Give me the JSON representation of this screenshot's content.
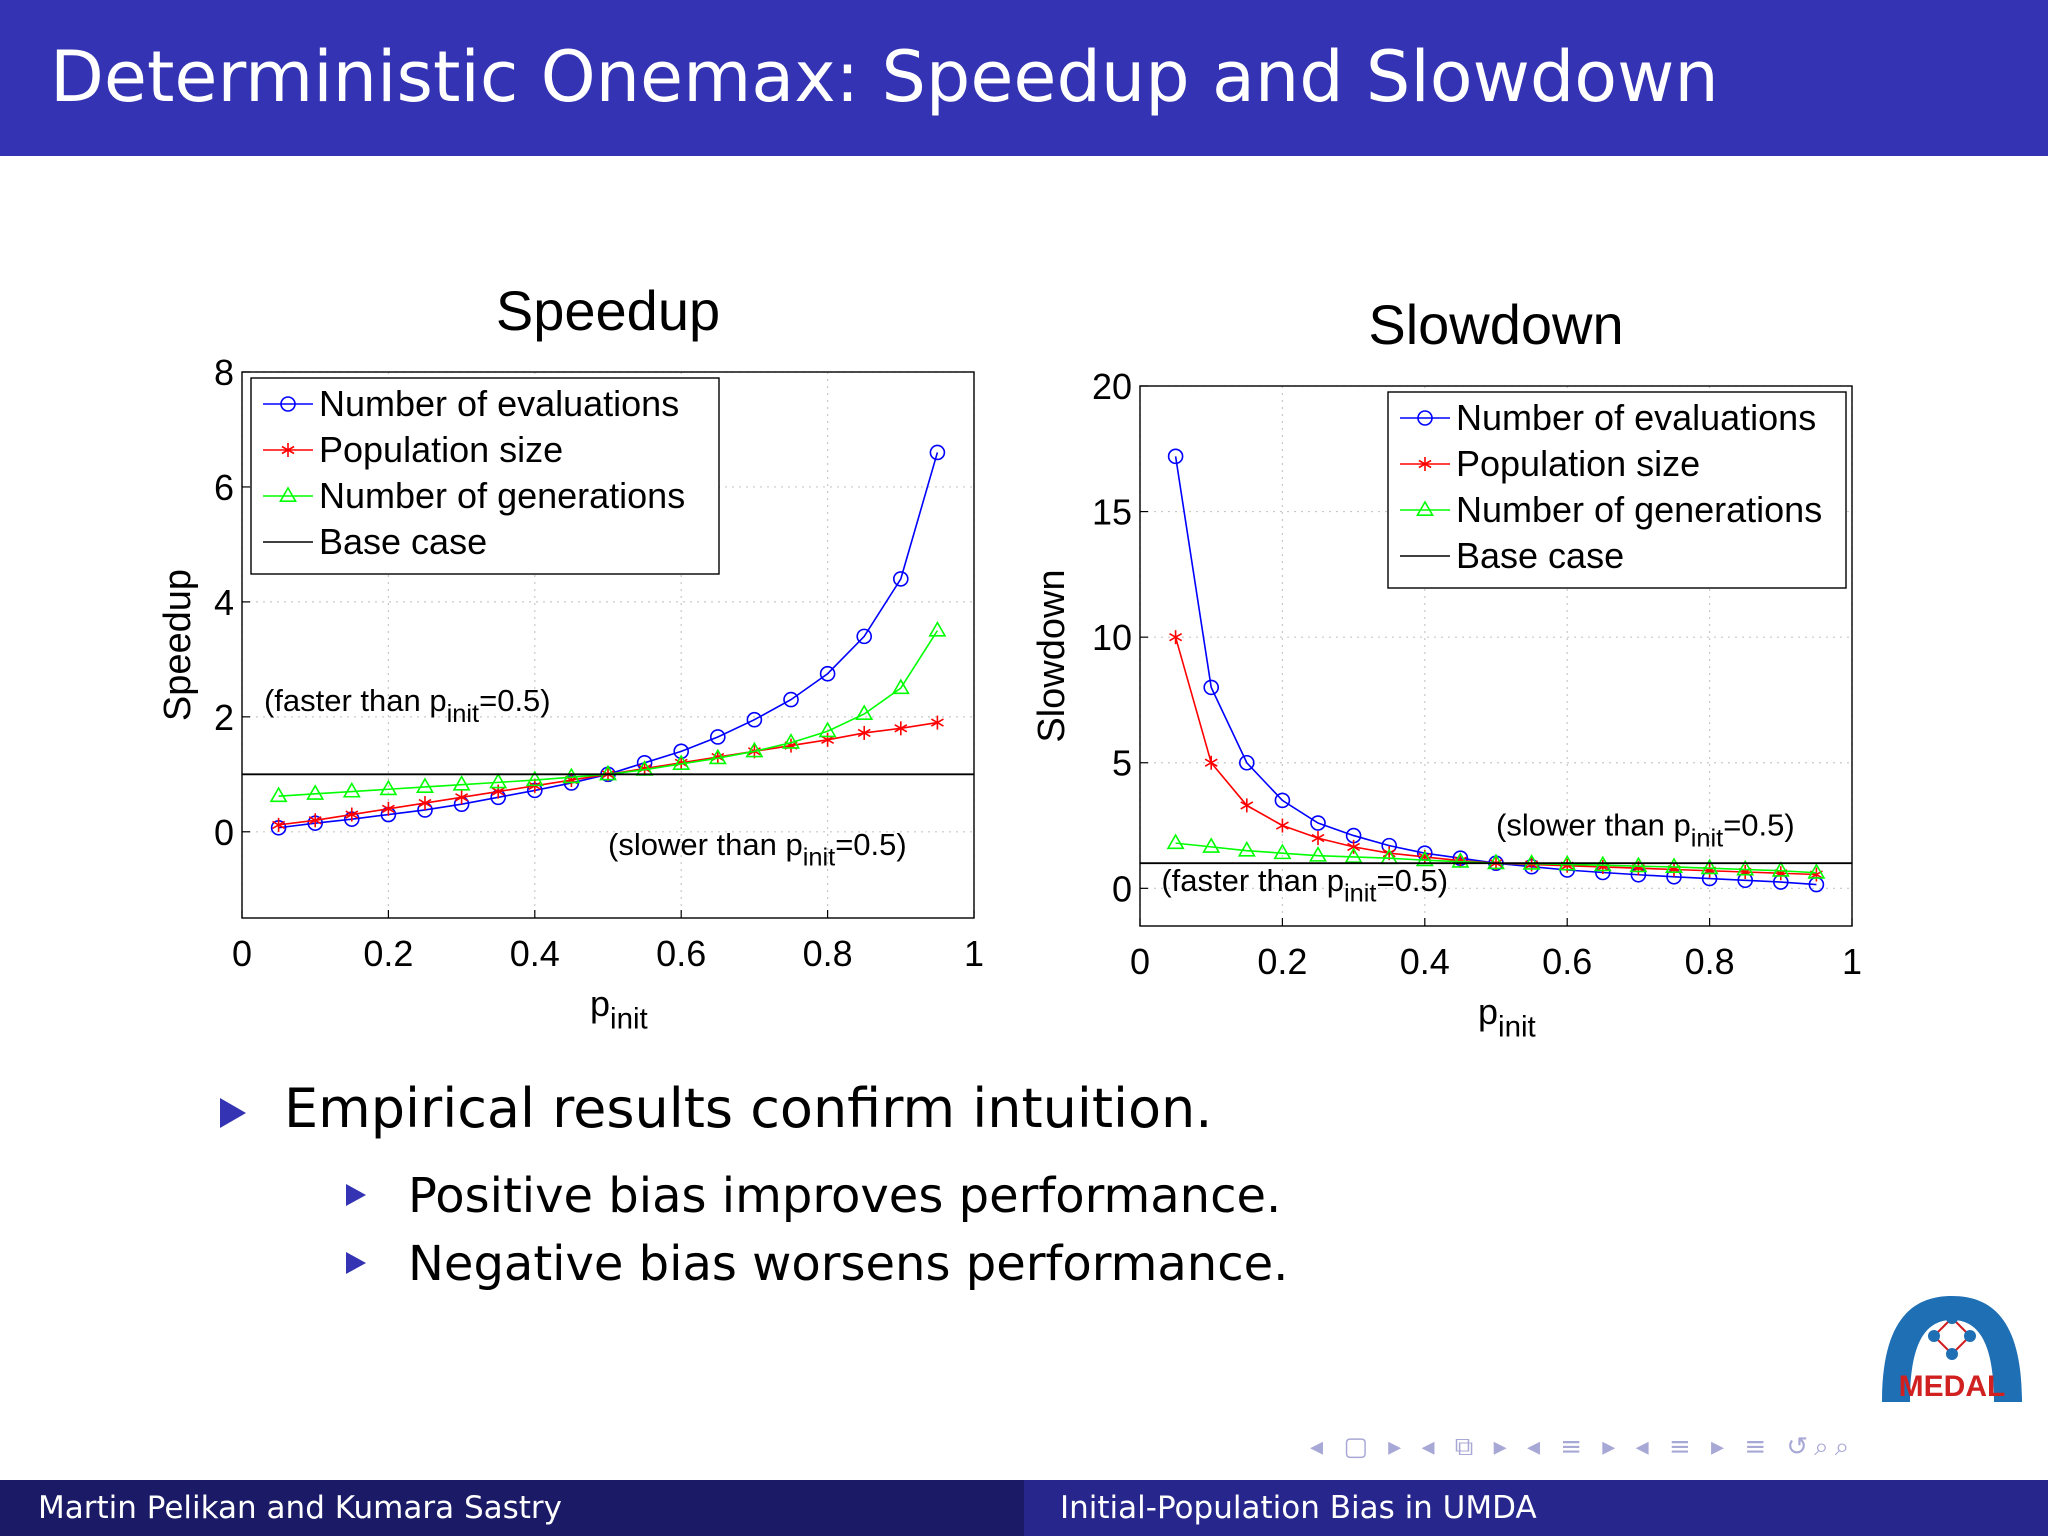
{
  "slide": {
    "title": "Deterministic Onemax: Speedup and Slowdown",
    "colors": {
      "title_bar": "#3333B3",
      "footer_left": "#1A1A66",
      "footer_right": "#26268C",
      "bullet": "#3333B3"
    }
  },
  "chart_data": [
    {
      "type": "line",
      "title": "Speedup",
      "xlabel": "p",
      "xlabel_sub": "init",
      "ylabel": "Speedup",
      "xlim": [
        0,
        1
      ],
      "ylim": [
        -1.5,
        8
      ],
      "xticks": [
        0,
        0.2,
        0.4,
        0.6,
        0.8,
        1
      ],
      "xtick_labels": [
        "0",
        "0.2",
        "0.4",
        "0.6",
        "0.8",
        "1"
      ],
      "yticks": [
        0,
        2,
        4,
        6,
        8
      ],
      "ytick_labels": [
        "0",
        "2",
        "4",
        "6",
        "8"
      ],
      "grid": true,
      "legend": "top-left",
      "x": [
        0.05,
        0.1,
        0.15,
        0.2,
        0.25,
        0.3,
        0.35,
        0.4,
        0.45,
        0.5,
        0.55,
        0.6,
        0.65,
        0.7,
        0.75,
        0.8,
        0.85,
        0.9,
        0.95
      ],
      "series": [
        {
          "name": "Number of evaluations",
          "color": "#0000FF",
          "marker": "circle",
          "values": [
            0.07,
            0.15,
            0.22,
            0.3,
            0.38,
            0.48,
            0.6,
            0.72,
            0.85,
            1.0,
            1.2,
            1.4,
            1.65,
            1.95,
            2.3,
            2.75,
            3.4,
            4.4,
            6.6
          ]
        },
        {
          "name": "Population size",
          "color": "#FF0000",
          "marker": "star",
          "values": [
            0.12,
            0.2,
            0.3,
            0.4,
            0.5,
            0.6,
            0.7,
            0.8,
            0.9,
            1.0,
            1.1,
            1.2,
            1.3,
            1.4,
            1.5,
            1.6,
            1.72,
            1.8,
            1.9
          ]
        },
        {
          "name": "Number of generations",
          "color": "#00FF00",
          "marker": "triangle",
          "values": [
            0.62,
            0.66,
            0.7,
            0.74,
            0.78,
            0.82,
            0.86,
            0.9,
            0.95,
            1.0,
            1.08,
            1.18,
            1.28,
            1.4,
            1.55,
            1.75,
            2.05,
            2.5,
            3.5
          ]
        },
        {
          "name": "Base case",
          "color": "#000000",
          "marker": "none",
          "constant": 1
        }
      ],
      "annotations": [
        {
          "text": "(faster than p",
          "sub": "init",
          "tail": "=0.5)",
          "x": 0.03,
          "y": 2.1
        },
        {
          "text": "(slower than p",
          "sub": "init",
          "tail": "=0.5)",
          "x": 0.5,
          "y": -0.4
        }
      ]
    },
    {
      "type": "line",
      "title": "Slowdown",
      "xlabel": "p",
      "xlabel_sub": "init",
      "ylabel": "Slowdown",
      "xlim": [
        0,
        1
      ],
      "ylim": [
        -1.5,
        20
      ],
      "xticks": [
        0,
        0.2,
        0.4,
        0.6,
        0.8,
        1
      ],
      "xtick_labels": [
        "0",
        "0.2",
        "0.4",
        "0.6",
        "0.8",
        "1"
      ],
      "yticks": [
        0,
        5,
        10,
        15,
        20
      ],
      "ytick_labels": [
        "0",
        "5",
        "10",
        "15",
        "20"
      ],
      "grid": true,
      "legend": "top-right",
      "x": [
        0.05,
        0.1,
        0.15,
        0.2,
        0.25,
        0.3,
        0.35,
        0.4,
        0.45,
        0.5,
        0.55,
        0.6,
        0.65,
        0.7,
        0.75,
        0.8,
        0.85,
        0.9,
        0.95
      ],
      "series": [
        {
          "name": "Number of evaluations",
          "color": "#0000FF",
          "marker": "circle",
          "values": [
            17.2,
            8.0,
            5.0,
            3.5,
            2.6,
            2.1,
            1.7,
            1.4,
            1.2,
            1.0,
            0.86,
            0.73,
            0.63,
            0.54,
            0.46,
            0.39,
            0.32,
            0.25,
            0.15
          ]
        },
        {
          "name": "Population size",
          "color": "#FF0000",
          "marker": "star",
          "values": [
            10.0,
            5.0,
            3.3,
            2.5,
            2.0,
            1.65,
            1.4,
            1.25,
            1.1,
            1.0,
            0.95,
            0.9,
            0.85,
            0.8,
            0.75,
            0.7,
            0.65,
            0.6,
            0.55
          ]
        },
        {
          "name": "Number of generations",
          "color": "#00FF00",
          "marker": "triangle",
          "values": [
            1.8,
            1.65,
            1.5,
            1.4,
            1.3,
            1.25,
            1.2,
            1.12,
            1.06,
            1.0,
            0.98,
            0.95,
            0.92,
            0.88,
            0.85,
            0.8,
            0.75,
            0.7,
            0.62
          ]
        },
        {
          "name": "Base case",
          "color": "#000000",
          "marker": "none",
          "constant": 1
        }
      ],
      "annotations": [
        {
          "text": "(slower than p",
          "sub": "init",
          "tail": "=0.5)",
          "x": 0.5,
          "y": 2.1
        },
        {
          "text": "(faster than p",
          "sub": "init",
          "tail": "=0.5)",
          "x": 0.03,
          "y": -0.1
        }
      ]
    }
  ],
  "bullets": {
    "main": "Empirical results confirm intuition.",
    "sub": [
      "Positive bias improves performance.",
      "Negative bias worsens performance."
    ]
  },
  "footer": {
    "authors": "Martin Pelikan and Kumara Sastry",
    "talk_title": "Initial-Population Bias in UMDA"
  },
  "logo": {
    "text": "MEDAL"
  }
}
